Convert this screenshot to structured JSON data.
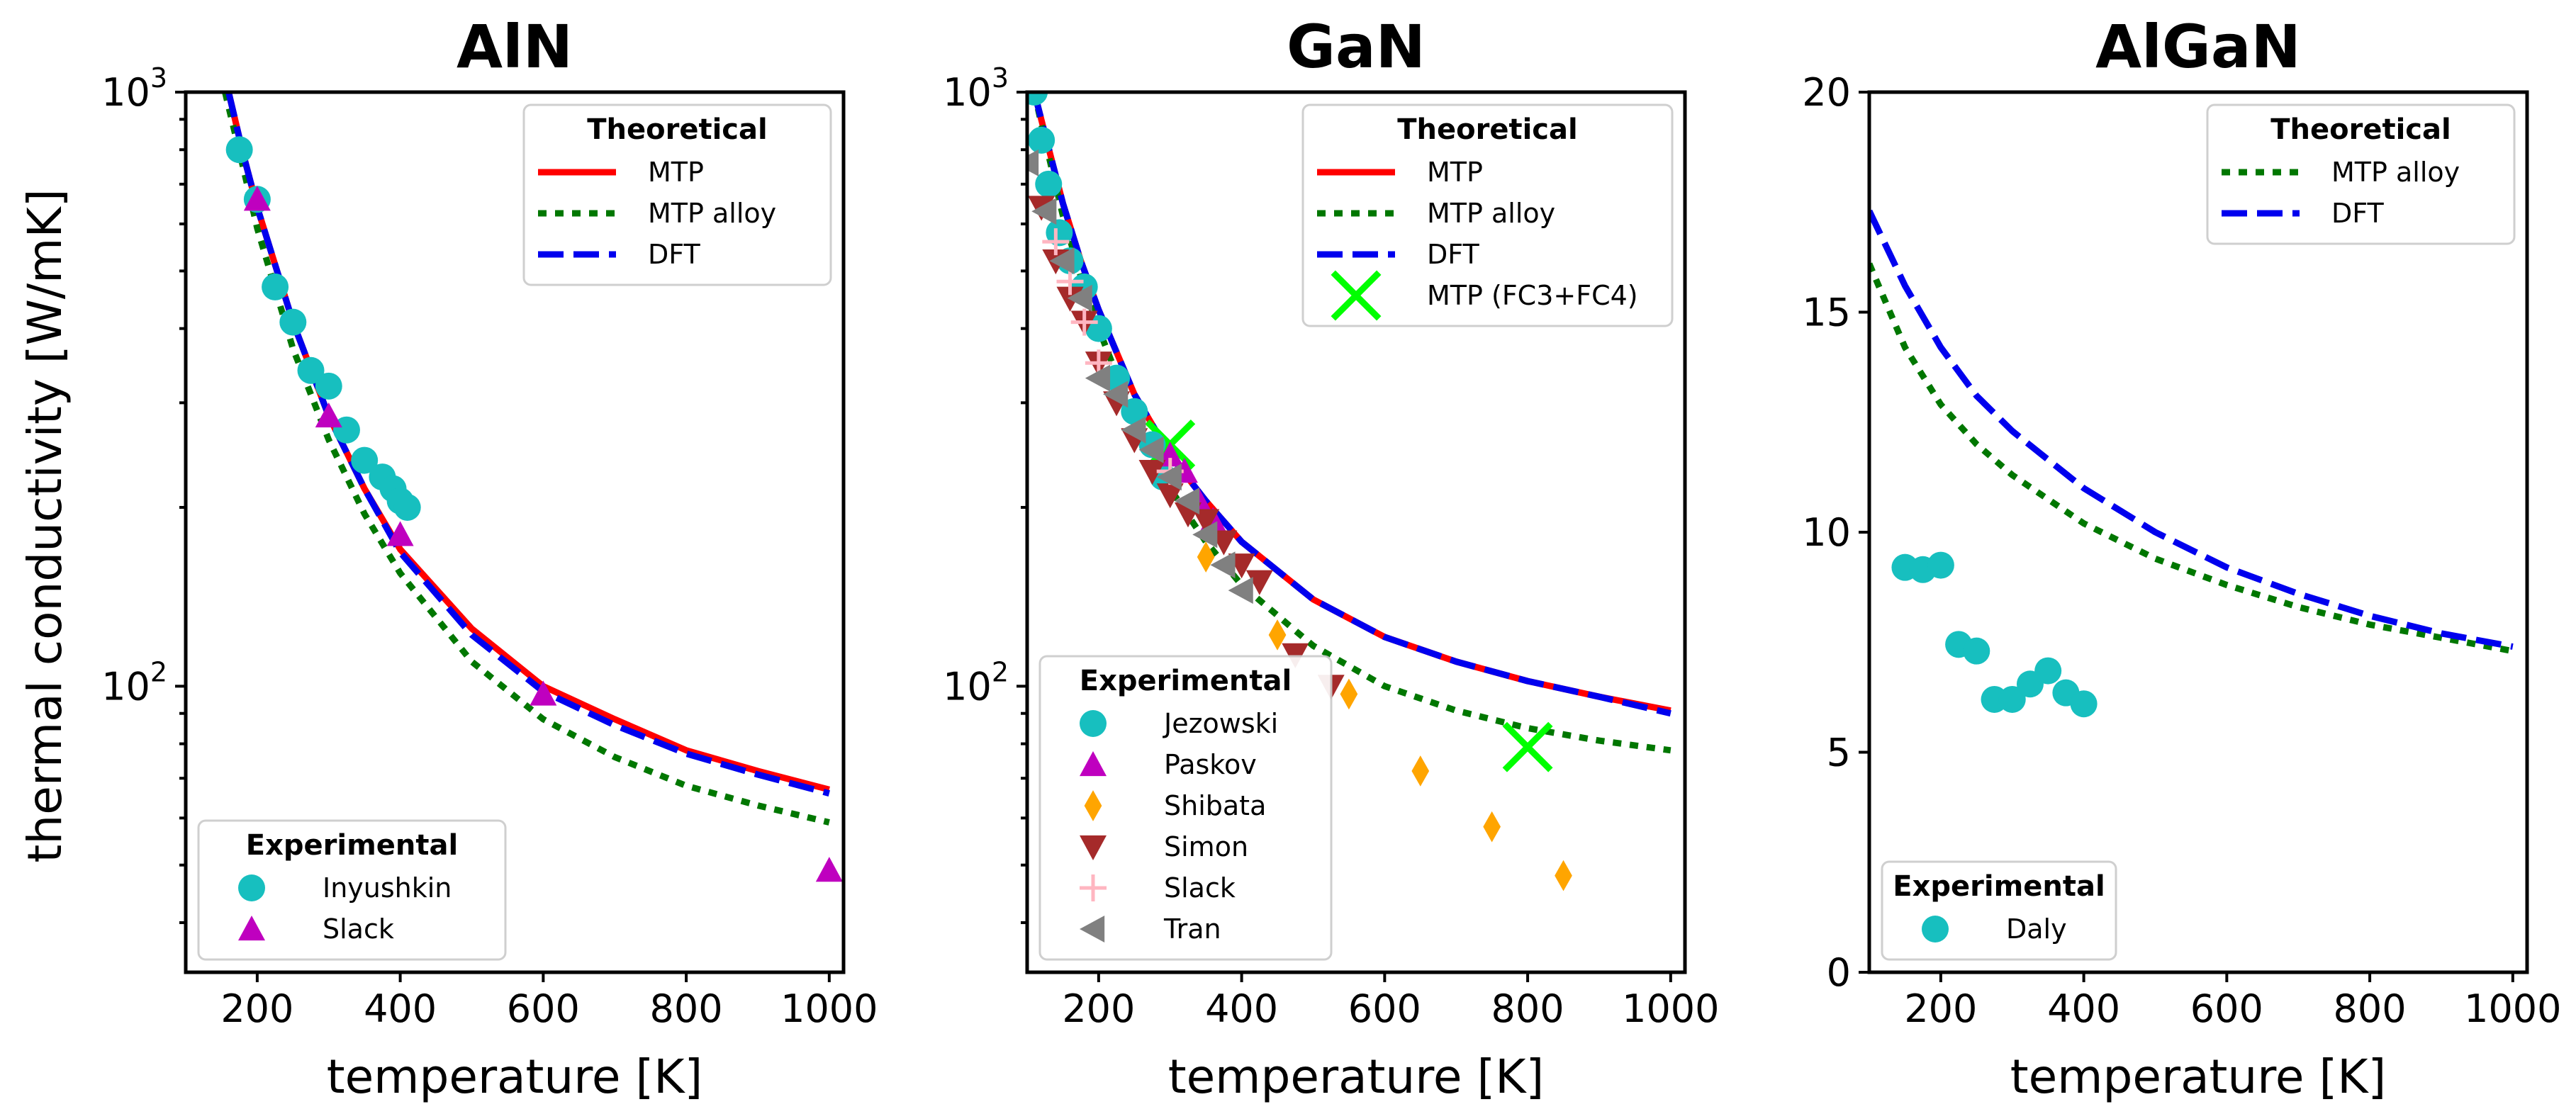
{
  "figure": {
    "ylabel": "thermal conductivity [W/mK]"
  },
  "chart_data": [
    {
      "id": "aln",
      "type": "line",
      "title": "AlN",
      "xlabel": "temperature [K]",
      "ylabel": "thermal conductivity [W/mK]",
      "xlim": [
        100,
        1020
      ],
      "ylim": [
        33,
        1000
      ],
      "yscale": "log",
      "xticks": [
        200,
        400,
        600,
        800,
        1000
      ],
      "yticks": [
        {
          "v": 100,
          "base": "10",
          "exp": "2"
        },
        {
          "v": 1000,
          "base": "10",
          "exp": "3"
        }
      ],
      "grid": false,
      "series": [
        {
          "name": "MTP",
          "group": "Theoretical",
          "kind": "line",
          "color": "#ff0000",
          "dash": "solid",
          "x": [
            160,
            180,
            200,
            250,
            300,
            350,
            400,
            500,
            600,
            700,
            800,
            900,
            1000
          ],
          "y": [
            1000,
            790,
            640,
            410,
            285,
            215,
            170,
            125,
            100,
            88,
            78,
            72,
            67
          ]
        },
        {
          "name": "MTP alloy",
          "group": "Theoretical",
          "kind": "line",
          "color": "#007700",
          "dash": "dotted",
          "x": [
            155,
            180,
            200,
            250,
            300,
            350,
            400,
            500,
            600,
            700,
            800,
            900,
            1000
          ],
          "y": [
            1000,
            750,
            590,
            370,
            260,
            195,
            155,
            110,
            88,
            76,
            68,
            63,
            59
          ]
        },
        {
          "name": "DFT",
          "group": "Theoretical",
          "kind": "line",
          "color": "#0000ee",
          "dash": "dashed",
          "x": [
            160,
            180,
            200,
            250,
            300,
            350,
            400,
            500,
            600,
            700,
            800,
            900,
            1000
          ],
          "y": [
            1000,
            790,
            640,
            410,
            285,
            215,
            168,
            122,
            98,
            86,
            77,
            71,
            66
          ]
        },
        {
          "name": "Inyushkin",
          "group": "Experimental",
          "kind": "scatter",
          "marker": "circle",
          "color": "#17bfbf",
          "x": [
            175,
            200,
            225,
            250,
            275,
            300,
            325,
            350,
            375,
            390,
            400,
            410
          ],
          "y": [
            800,
            660,
            470,
            410,
            340,
            320,
            270,
            240,
            225,
            215,
            205,
            200
          ]
        },
        {
          "name": "Slack",
          "group": "Experimental",
          "kind": "scatter",
          "marker": "triangle-up",
          "color": "#bf00bf",
          "x": [
            200,
            300,
            400,
            600,
            1000
          ],
          "y": [
            660,
            285,
            180,
            97,
            49
          ]
        }
      ],
      "legends": [
        {
          "title": "Theoretical",
          "position": "top-right",
          "entries": [
            "MTP",
            "MTP alloy",
            "DFT"
          ]
        },
        {
          "title": "Experimental",
          "position": "bottom-left",
          "entries": [
            "Inyushkin",
            "Slack"
          ]
        }
      ]
    },
    {
      "id": "gan",
      "type": "line",
      "title": "GaN",
      "xlabel": "temperature [K]",
      "ylabel": "",
      "xlim": [
        100,
        1020
      ],
      "ylim": [
        33,
        1000
      ],
      "yscale": "log",
      "xticks": [
        200,
        400,
        600,
        800,
        1000
      ],
      "yticks": [
        {
          "v": 100,
          "base": "10",
          "exp": "2"
        },
        {
          "v": 1000,
          "base": "10",
          "exp": "3"
        }
      ],
      "grid": false,
      "series": [
        {
          "name": "MTP",
          "group": "Theoretical",
          "kind": "line",
          "color": "#ff0000",
          "dash": "solid",
          "x": [
            110,
            125,
            150,
            175,
            200,
            250,
            300,
            350,
            400,
            500,
            600,
            700,
            800,
            900,
            1000
          ],
          "y": [
            1000,
            850,
            650,
            520,
            430,
            310,
            245,
            205,
            175,
            140,
            121,
            110,
            102,
            96,
            91
          ]
        },
        {
          "name": "MTP alloy",
          "group": "Theoretical",
          "kind": "line",
          "color": "#007700",
          "dash": "dotted",
          "x": [
            110,
            125,
            150,
            175,
            200,
            250,
            300,
            350,
            400,
            500,
            600,
            700,
            800,
            900,
            1000
          ],
          "y": [
            1000,
            830,
            620,
            490,
            400,
            280,
            215,
            175,
            148,
            117,
            100,
            91,
            85,
            81,
            78
          ]
        },
        {
          "name": "DFT",
          "group": "Theoretical",
          "kind": "line",
          "color": "#0000ee",
          "dash": "dashed",
          "x": [
            110,
            125,
            150,
            175,
            200,
            250,
            300,
            350,
            400,
            500,
            600,
            700,
            800,
            900,
            1000
          ],
          "y": [
            1000,
            850,
            650,
            520,
            430,
            310,
            245,
            205,
            175,
            140,
            121,
            110,
            102,
            96,
            90
          ]
        },
        {
          "name": "MTP (FC3+FC4)",
          "group": "Theoretical",
          "kind": "scatter",
          "marker": "x",
          "color": "#00ff00",
          "x": [
            300,
            800
          ],
          "y": [
            255,
            79
          ]
        },
        {
          "name": "Jezowski",
          "group": "Experimental",
          "kind": "scatter",
          "marker": "circle",
          "color": "#17bfbf",
          "x": [
            110,
            120,
            130,
            145,
            160,
            180,
            200,
            225,
            250,
            275,
            290
          ],
          "y": [
            1000,
            830,
            700,
            580,
            520,
            470,
            400,
            330,
            290,
            255,
            225
          ]
        },
        {
          "name": "Paskov",
          "group": "Experimental",
          "kind": "scatter",
          "marker": "triangle-up",
          "color": "#bf00bf",
          "x": [
            300,
            320,
            340,
            360
          ],
          "y": [
            245,
            230,
            205,
            190
          ]
        },
        {
          "name": "Shibata",
          "group": "Experimental",
          "kind": "scatter",
          "marker": "diamond",
          "color": "#ffa500",
          "x": [
            350,
            450,
            550,
            650,
            750,
            850
          ],
          "y": [
            165,
            122,
            97,
            72,
            58,
            48
          ]
        },
        {
          "name": "Simon",
          "group": "Experimental",
          "kind": "scatter",
          "marker": "triangle-down",
          "color": "#a52a2a",
          "x": [
            120,
            140,
            160,
            180,
            200,
            225,
            250,
            275,
            300,
            325,
            350,
            375,
            400,
            425,
            475,
            525
          ],
          "y": [
            640,
            520,
            450,
            410,
            350,
            300,
            260,
            230,
            210,
            195,
            190,
            175,
            160,
            150,
            113,
            100
          ]
        },
        {
          "name": "Slack",
          "group": "Experimental",
          "kind": "scatter",
          "marker": "plus",
          "color": "#ffb6c1",
          "x": [
            140,
            160,
            180,
            200,
            300
          ],
          "y": [
            560,
            480,
            410,
            350,
            230
          ]
        },
        {
          "name": "Tran",
          "group": "Experimental",
          "kind": "scatter",
          "marker": "triangle-left",
          "color": "#808080",
          "x": [
            100,
            125,
            150,
            175,
            200,
            225,
            250,
            275,
            300,
            325,
            350,
            375,
            400
          ],
          "y": [
            760,
            630,
            520,
            450,
            330,
            310,
            270,
            250,
            225,
            205,
            180,
            160,
            145
          ]
        }
      ],
      "legends": [
        {
          "title": "Theoretical",
          "position": "top-right",
          "entries": [
            "MTP",
            "MTP alloy",
            "DFT",
            "MTP (FC3+FC4)"
          ]
        },
        {
          "title": "Experimental",
          "position": "bottom-left",
          "entries": [
            "Jezowski",
            "Paskov",
            "Shibata",
            "Simon",
            "Slack",
            "Tran"
          ]
        }
      ]
    },
    {
      "id": "algan",
      "type": "line",
      "title": "AlGaN",
      "xlabel": "temperature [K]",
      "ylabel": "",
      "xlim": [
        100,
        1020
      ],
      "ylim": [
        0,
        20
      ],
      "yscale": "linear",
      "xticks": [
        200,
        400,
        600,
        800,
        1000
      ],
      "yticks": [
        {
          "v": 0,
          "label": "0"
        },
        {
          "v": 5,
          "label": "5"
        },
        {
          "v": 10,
          "label": "10"
        },
        {
          "v": 15,
          "label": "15"
        },
        {
          "v": 20,
          "label": "20"
        }
      ],
      "grid": false,
      "series": [
        {
          "name": "MTP alloy",
          "group": "Theoretical",
          "kind": "line",
          "color": "#007700",
          "dash": "dotted",
          "x": [
            100,
            150,
            200,
            250,
            300,
            400,
            500,
            600,
            700,
            800,
            900,
            1000
          ],
          "y": [
            16.1,
            14.2,
            12.9,
            12.0,
            11.3,
            10.2,
            9.4,
            8.8,
            8.3,
            7.9,
            7.6,
            7.3
          ]
        },
        {
          "name": "DFT",
          "group": "Theoretical",
          "kind": "line",
          "color": "#0000ee",
          "dash": "dashed",
          "x": [
            100,
            150,
            200,
            250,
            300,
            400,
            500,
            600,
            700,
            800,
            900,
            1000
          ],
          "y": [
            17.3,
            15.6,
            14.2,
            13.1,
            12.3,
            11.0,
            10.0,
            9.2,
            8.6,
            8.1,
            7.7,
            7.4
          ]
        },
        {
          "name": "Daly",
          "group": "Experimental",
          "kind": "scatter",
          "marker": "circle",
          "color": "#17bfbf",
          "x": [
            150,
            175,
            200,
            225,
            250,
            275,
            300,
            325,
            350,
            375,
            400
          ],
          "y": [
            9.2,
            9.15,
            9.25,
            7.45,
            7.3,
            6.2,
            6.2,
            6.55,
            6.85,
            6.35,
            6.1
          ]
        }
      ],
      "legends": [
        {
          "title": "Theoretical",
          "position": "top-right",
          "entries": [
            "MTP alloy",
            "DFT"
          ]
        },
        {
          "title": "Experimental",
          "position": "bottom-left",
          "entries": [
            "Daly"
          ]
        }
      ]
    }
  ]
}
